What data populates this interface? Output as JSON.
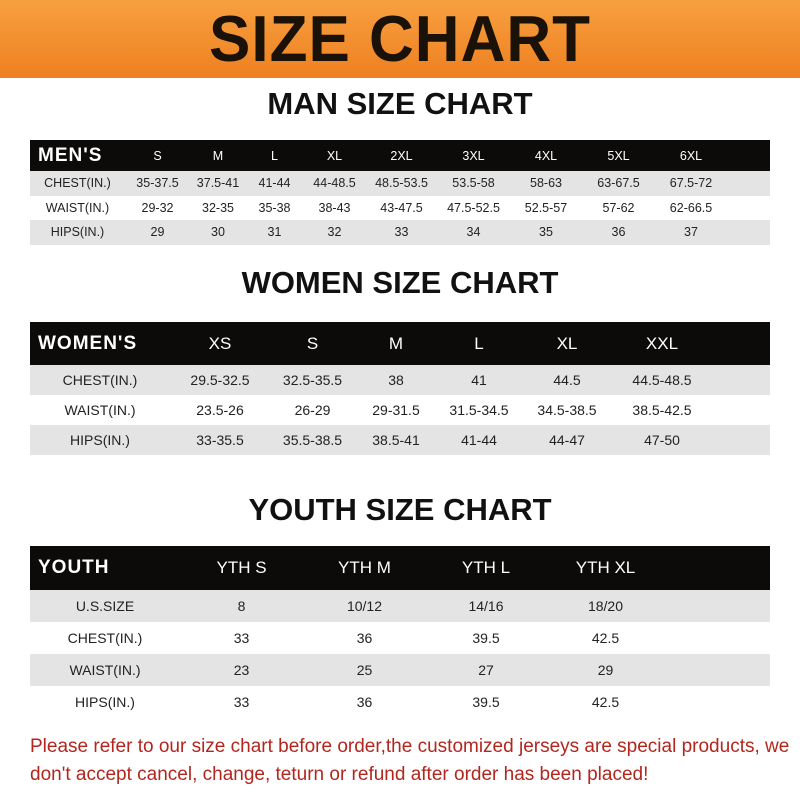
{
  "title": "SIZE CHART",
  "men": {
    "title": "MAN SIZE CHART",
    "header": "MEN'S",
    "sizes": [
      "S",
      "M",
      "L",
      "XL",
      "2XL",
      "3XL",
      "4XL",
      "5XL",
      "6XL"
    ],
    "rows": [
      {
        "label": "CHEST(IN.)",
        "values": [
          "35-37.5",
          "37.5-41",
          "41-44",
          "44-48.5",
          "48.5-53.5",
          "53.5-58",
          "58-63",
          "63-67.5",
          "67.5-72"
        ]
      },
      {
        "label": "WAIST(IN.)",
        "values": [
          "29-32",
          "32-35",
          "35-38",
          "38-43",
          "43-47.5",
          "47.5-52.5",
          "52.5-57",
          "57-62",
          "62-66.5"
        ]
      },
      {
        "label": "HIPS(IN.)",
        "values": [
          "29",
          "30",
          "31",
          "32",
          "33",
          "34",
          "35",
          "36",
          "37"
        ]
      }
    ]
  },
  "women": {
    "title": "WOMEN SIZE CHART",
    "header": "WOMEN'S",
    "sizes": [
      "XS",
      "S",
      "M",
      "L",
      "XL",
      "XXL"
    ],
    "rows": [
      {
        "label": "CHEST(IN.)",
        "values": [
          "29.5-32.5",
          "32.5-35.5",
          "38",
          "41",
          "44.5",
          "44.5-48.5"
        ]
      },
      {
        "label": "WAIST(IN.)",
        "values": [
          "23.5-26",
          "26-29",
          "29-31.5",
          "31.5-34.5",
          "34.5-38.5",
          "38.5-42.5"
        ]
      },
      {
        "label": "HIPS(IN.)",
        "values": [
          "33-35.5",
          "35.5-38.5",
          "38.5-41",
          "41-44",
          "44-47",
          "47-50"
        ]
      }
    ]
  },
  "youth": {
    "title": "YOUTH SIZE CHART",
    "header": "YOUTH",
    "sizes": [
      "YTH S",
      "YTH M",
      "YTH L",
      "YTH XL"
    ],
    "rows": [
      {
        "label": "U.S.SIZE",
        "values": [
          "8",
          "10/12",
          "14/16",
          "18/20"
        ]
      },
      {
        "label": "CHEST(IN.)",
        "values": [
          "33",
          "36",
          "39.5",
          "42.5"
        ]
      },
      {
        "label": "WAIST(IN.)",
        "values": [
          "23",
          "25",
          "27",
          "29"
        ]
      },
      {
        "label": "HIPS(IN.)",
        "values": [
          "33",
          "36",
          "39.5",
          "42.5"
        ]
      }
    ]
  },
  "notice": "Please refer to our size chart before order,the customized jerseys are special products, we don't accept cancel, change, teturn or refund after order has been placed!",
  "colors": {
    "banner": "#ee8020",
    "header_row": "#0d0a0a",
    "stripe": "#e4e4e4",
    "notice": "#b3261e"
  }
}
